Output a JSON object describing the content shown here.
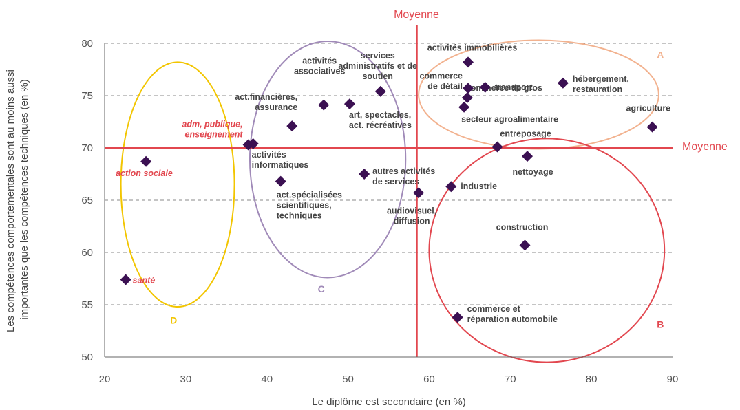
{
  "colors": {
    "marker": "#3b1052",
    "mean_line": "#e2474f",
    "grid": "#888888",
    "text": "#444444",
    "red_text": "#e2474f"
  },
  "chart_data": {
    "type": "scatter",
    "xlabel": "Le diplôme est secondaire (en %)",
    "ylabel_lines": [
      "Les compétences comportementales sont au moins aussi",
      "importantes que les compétences techniques (en %)"
    ],
    "xlim": [
      20,
      90
    ],
    "ylim": [
      50,
      80
    ],
    "xticks": [
      20,
      30,
      40,
      50,
      60,
      70,
      80,
      90
    ],
    "yticks": [
      50,
      55,
      60,
      65,
      70,
      75,
      80
    ],
    "grid": "horizontal dashed",
    "mean_x": 58.5,
    "mean_y": 70,
    "mean_x_label": "Moyenne",
    "mean_y_label": "Moyenne",
    "points": [
      {
        "x": 22.6,
        "y": 57.4,
        "lines": [
          "santé"
        ],
        "red": true
      },
      {
        "x": 25.1,
        "y": 68.7,
        "lines": [
          "action sociale"
        ],
        "red": true
      },
      {
        "x": 37.7,
        "y": 70.3,
        "lines": [
          "adm, publique,",
          "enseignement"
        ],
        "red": true
      },
      {
        "x": 38.3,
        "y": 70.4,
        "lines": [
          "activités",
          "informatiques"
        ],
        "red": false
      },
      {
        "x": 41.7,
        "y": 66.8,
        "lines": [
          "act.spécialisées",
          "scientifiques,",
          "techniques"
        ],
        "red": false
      },
      {
        "x": 43.1,
        "y": 72.1,
        "lines": [
          "act.financières,",
          "assurance"
        ],
        "red": false
      },
      {
        "x": 47.0,
        "y": 74.1,
        "lines": [
          "activités",
          "associatives"
        ],
        "red": false
      },
      {
        "x": 50.2,
        "y": 74.2,
        "lines": [
          "art, spectacles,",
          "act. récréatives"
        ],
        "red": false
      },
      {
        "x": 52.0,
        "y": 67.5,
        "lines": [
          "autres activités",
          "de services"
        ],
        "red": false
      },
      {
        "x": 54.0,
        "y": 75.4,
        "lines": [
          "services",
          "administratifs et de",
          "soutien"
        ],
        "red": false
      },
      {
        "x": 58.7,
        "y": 65.7,
        "lines": [
          "audiovisuel,",
          "diffusion"
        ],
        "red": false
      },
      {
        "x": 62.7,
        "y": 66.3,
        "lines": [
          "industrie"
        ],
        "red": false
      },
      {
        "x": 63.5,
        "y": 53.8,
        "lines": [
          "commerce et",
          "réparation automobile"
        ],
        "red": false
      },
      {
        "x": 64.3,
        "y": 73.9,
        "lines": [
          "secteur agroalimentaire"
        ],
        "red": false
      },
      {
        "x": 64.7,
        "y": 74.8,
        "lines": [
          "commerce de gros"
        ],
        "red": false
      },
      {
        "x": 64.8,
        "y": 75.7,
        "lines": [
          "commerce",
          "de détail"
        ],
        "red": false
      },
      {
        "x": 64.8,
        "y": 78.2,
        "lines": [
          "activités immobilières"
        ],
        "red": false
      },
      {
        "x": 66.9,
        "y": 75.8,
        "lines": [
          "transport"
        ],
        "red": false
      },
      {
        "x": 68.4,
        "y": 70.1,
        "lines": [
          "entreposage"
        ],
        "red": false
      },
      {
        "x": 71.8,
        "y": 60.7,
        "lines": [
          "construction"
        ],
        "red": false
      },
      {
        "x": 72.1,
        "y": 69.2,
        "lines": [
          "nettoyage"
        ],
        "red": false
      },
      {
        "x": 76.5,
        "y": 76.2,
        "lines": [
          "hébergement,",
          "restauration"
        ],
        "red": false
      },
      {
        "x": 87.5,
        "y": 72.0,
        "lines": [
          "agriculture"
        ],
        "red": false
      }
    ],
    "groups": [
      {
        "label": "A",
        "color": "#f2b28f"
      },
      {
        "label": "B",
        "color": "#e2474f"
      },
      {
        "label": "C",
        "color": "#a08ab8"
      },
      {
        "label": "D",
        "color": "#f2c500"
      }
    ]
  }
}
